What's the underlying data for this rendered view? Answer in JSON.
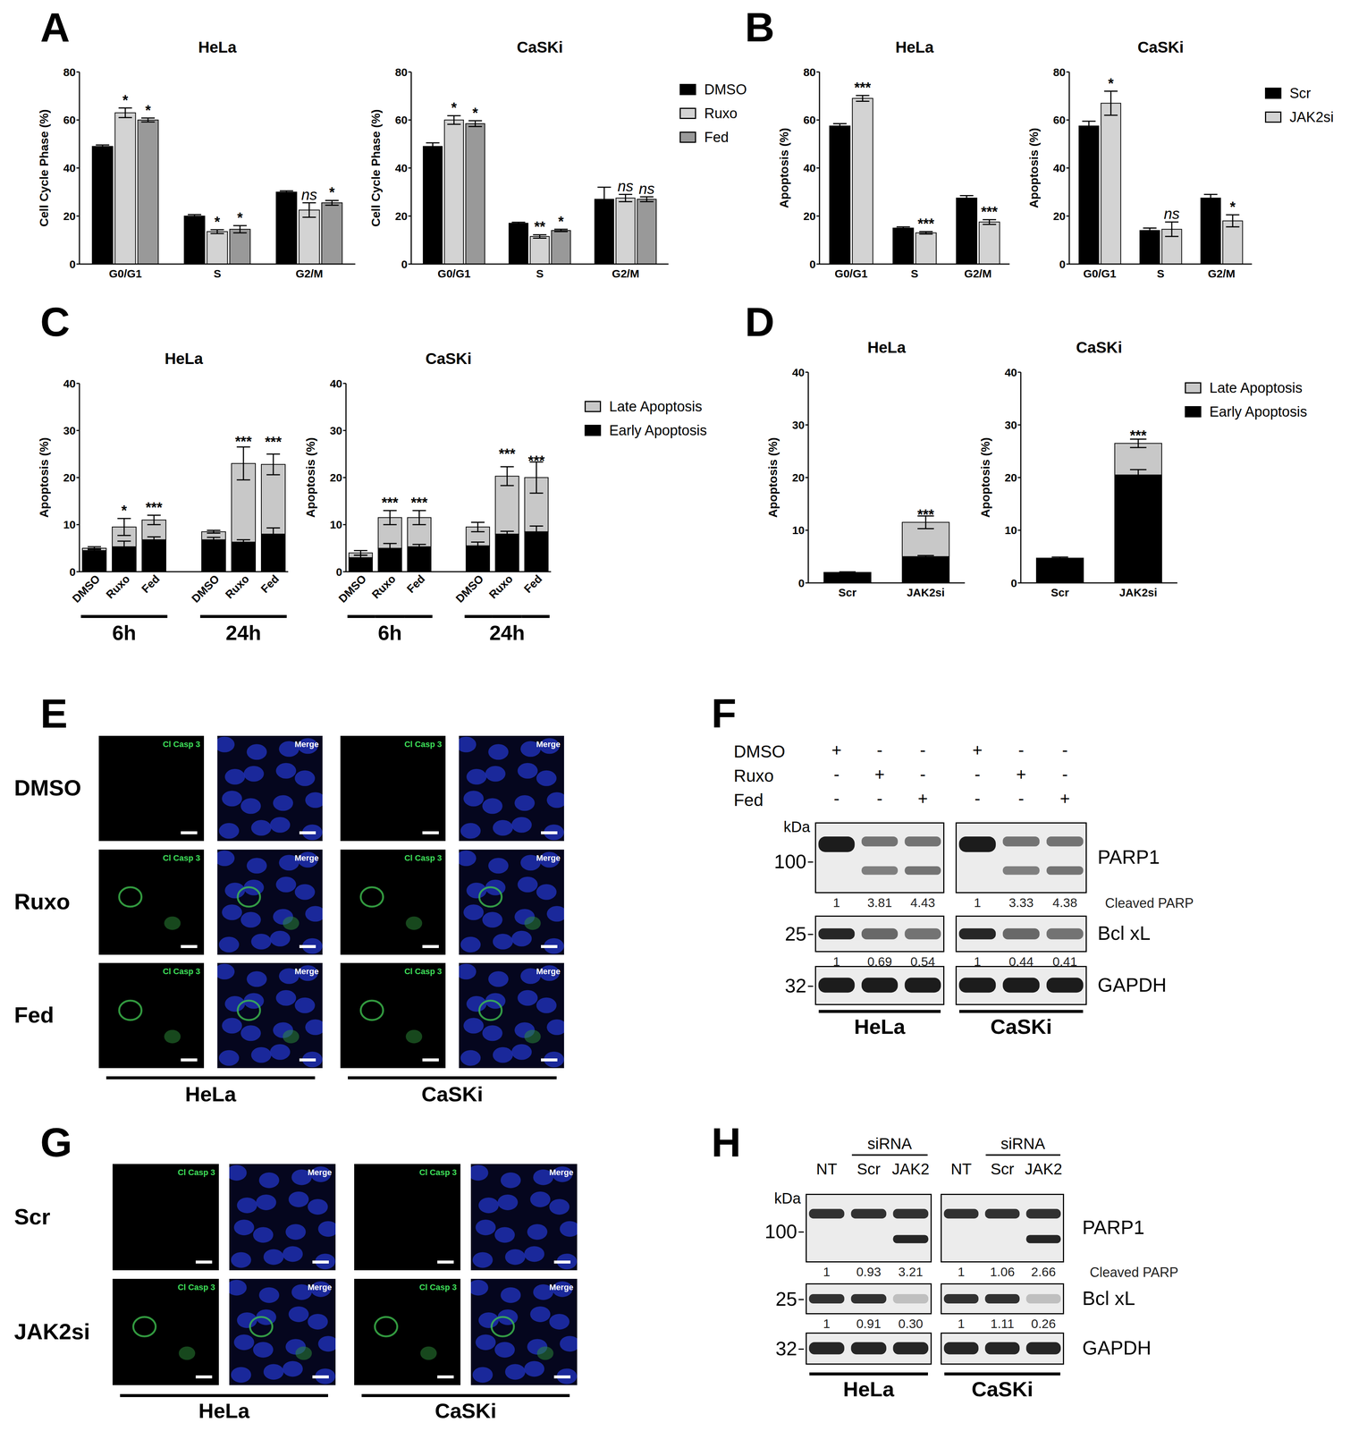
{
  "chart_data": [
    {
      "type": "bar",
      "title": "HeLa",
      "y_label": "Cell Cycle Phase (%)",
      "categories": [
        "G0/G1",
        "S",
        "G2/M"
      ],
      "series": [
        {
          "name": "DMSO",
          "color": "#000000",
          "values": [
            49,
            20,
            30
          ],
          "errors": [
            0.6,
            0.6,
            0.5
          ]
        },
        {
          "name": "Ruxo",
          "color": "#d3d3d3",
          "values": [
            63,
            13.5,
            22.5
          ],
          "errors": [
            2,
            0.8,
            3
          ],
          "significance": [
            "*",
            "*",
            "ns"
          ]
        },
        {
          "name": "Fed",
          "color": "#999999",
          "values": [
            60,
            14.5,
            25.5
          ],
          "errors": [
            0.8,
            1.5,
            1
          ],
          "significance": [
            "*",
            "*",
            "*"
          ]
        }
      ],
      "ylim": [
        0,
        80
      ],
      "yticks": [
        0,
        20,
        40,
        60,
        80
      ]
    },
    {
      "type": "bar",
      "title": "CaSKi",
      "y_label": "Cell Cycle Phase (%)",
      "categories": [
        "G0/G1",
        "S",
        "G2/M"
      ],
      "series": [
        {
          "name": "DMSO",
          "color": "#000000",
          "values": [
            49,
            17,
            27
          ],
          "errors": [
            1.5,
            0.4,
            5
          ]
        },
        {
          "name": "Ruxo",
          "color": "#d3d3d3",
          "values": [
            60,
            11.5,
            27.5
          ],
          "errors": [
            1.8,
            0.7,
            1.5
          ],
          "significance": [
            "*",
            "**",
            "ns"
          ]
        },
        {
          "name": "Fed",
          "color": "#999999",
          "values": [
            58.5,
            14,
            27
          ],
          "errors": [
            1.2,
            0.5,
            1
          ],
          "significance": [
            "*",
            "*",
            "ns"
          ]
        }
      ],
      "ylim": [
        0,
        80
      ],
      "yticks": [
        0,
        20,
        40,
        60,
        80
      ],
      "legend": "right"
    },
    {
      "type": "bar",
      "title": "HeLa",
      "y_label": "Apoptosis (%)",
      "categories": [
        "G0/G1",
        "S",
        "G2/M"
      ],
      "series": [
        {
          "name": "Scr",
          "color": "#000000",
          "values": [
            57.5,
            15,
            27.5
          ],
          "errors": [
            1,
            0.5,
            1
          ]
        },
        {
          "name": "JAK2si",
          "color": "#d3d3d3",
          "values": [
            69,
            13,
            17.5
          ],
          "errors": [
            1.2,
            0.5,
            1
          ],
          "significance": [
            "***",
            "***",
            "***"
          ]
        }
      ],
      "ylim": [
        0,
        80
      ],
      "yticks": [
        0,
        20,
        40,
        60,
        80
      ]
    },
    {
      "type": "bar",
      "title": "CaSKi",
      "y_label": "Apoptosis (%)",
      "categories": [
        "G0/G1",
        "S",
        "G2/M"
      ],
      "series": [
        {
          "name": "Scr",
          "color": "#000000",
          "values": [
            57.5,
            14,
            27.5
          ],
          "errors": [
            2,
            1,
            1.5
          ]
        },
        {
          "name": "JAK2si",
          "color": "#d3d3d3",
          "values": [
            67,
            14.5,
            18
          ],
          "errors": [
            5,
            3,
            2.5
          ],
          "significance": [
            "*",
            "ns",
            "*"
          ]
        }
      ],
      "ylim": [
        0,
        80
      ],
      "yticks": [
        0,
        20,
        40,
        60,
        80
      ],
      "legend": "right"
    },
    {
      "type": "bar",
      "stacked": true,
      "title": "HeLa",
      "y_label": "Apoptosis (%)",
      "categories": [
        "DMSO",
        "Ruxo",
        "Fed",
        null,
        "DMSO",
        "Ruxo",
        "Fed"
      ],
      "group_labels": [
        "6h",
        "24h"
      ],
      "series": [
        {
          "name": "Early Apoptosis",
          "color": "#000000",
          "values": [
            4.5,
            5.3,
            6.8,
            null,
            6.8,
            6.3,
            8
          ],
          "errors": [
            0.4,
            1.2,
            0.6,
            null,
            0.5,
            0.5,
            1.3
          ]
        },
        {
          "name": "Late Apoptosis",
          "color": "#c8c8c8",
          "values": [
            0.5,
            4.2,
            4.2,
            null,
            1.7,
            16.7,
            14.8
          ],
          "errors": [
            0.3,
            1.8,
            1,
            null,
            0.3,
            3.5,
            2.2
          ],
          "significance": [
            null,
            "*",
            "***",
            null,
            null,
            "***",
            "***"
          ]
        }
      ],
      "ylim": [
        0,
        40
      ],
      "yticks": [
        0,
        10,
        20,
        30,
        40
      ]
    },
    {
      "type": "bar",
      "stacked": true,
      "title": "CaSKi",
      "y_label": "Apoptosis (%)",
      "categories": [
        "DMSO",
        "Ruxo",
        "Fed",
        null,
        "DMSO",
        "Ruxo",
        "Fed"
      ],
      "group_labels": [
        "6h",
        "24h"
      ],
      "series": [
        {
          "name": "Early Apoptosis",
          "color": "#000000",
          "values": [
            3,
            5,
            5.3,
            null,
            5.5,
            8,
            8.5
          ],
          "errors": [
            0.5,
            1,
            0.5,
            null,
            0.8,
            0.6,
            1.2
          ]
        },
        {
          "name": "Late Apoptosis",
          "color": "#c8c8c8",
          "values": [
            1,
            6.5,
            6.2,
            null,
            4,
            12.3,
            11.5
          ],
          "errors": [
            0.5,
            1.5,
            1.5,
            null,
            1,
            2,
            3.3
          ],
          "significance": [
            null,
            "***",
            "***",
            null,
            null,
            "***",
            "***"
          ]
        }
      ],
      "ylim": [
        0,
        40
      ],
      "yticks": [
        0,
        10,
        20,
        30,
        40
      ],
      "legend": "right"
    },
    {
      "type": "bar",
      "stacked": true,
      "title": "HeLa",
      "y_label": "Apoptosis (%)",
      "categories": [
        "Scr",
        "JAK2si"
      ],
      "series": [
        {
          "name": "Early Apoptosis",
          "color": "#000000",
          "values": [
            2,
            5
          ],
          "errors": [
            0.1,
            0.2
          ]
        },
        {
          "name": "Late Apoptosis",
          "color": "#c8c8c8",
          "values": [
            0,
            6.5
          ],
          "errors": [
            0,
            1.2
          ],
          "significance": [
            null,
            "***"
          ]
        }
      ],
      "ylim": [
        0,
        40
      ],
      "yticks": [
        0,
        10,
        20,
        30,
        40
      ]
    },
    {
      "type": "bar",
      "stacked": true,
      "title": "CaSKi",
      "y_label": "Apoptosis (%)",
      "categories": [
        "Scr",
        "JAK2si"
      ],
      "series": [
        {
          "name": "Early Apoptosis",
          "color": "#000000",
          "values": [
            4.7,
            20.5
          ],
          "errors": [
            0.2,
            1
          ]
        },
        {
          "name": "Late Apoptosis",
          "color": "#c8c8c8",
          "values": [
            0,
            6
          ],
          "errors": [
            0,
            0.8
          ],
          "significance": [
            null,
            "***"
          ]
        }
      ],
      "ylim": [
        0,
        40
      ],
      "yticks": [
        0,
        10,
        20,
        30,
        40
      ],
      "legend": "right"
    }
  ],
  "chart_panel_labels": [
    "A",
    "B",
    "C",
    "D"
  ],
  "images": [
    {
      "label": "E",
      "rows": [
        "DMSO",
        "Ruxo",
        "Fed"
      ],
      "channels": [
        "Cl Casp 3",
        "Merge"
      ],
      "cell_lines": [
        "HeLa",
        "CaSKi"
      ]
    },
    {
      "label": "G",
      "rows": [
        "Scr",
        "JAK2si"
      ],
      "channels": [
        "Cl Casp 3",
        "Merge"
      ],
      "cell_lines": [
        "HeLa",
        "CaSKi"
      ]
    }
  ],
  "blots": [
    {
      "label": "F",
      "treatments": [
        {
          "name": "DMSO",
          "marks": [
            "+",
            "-",
            "-",
            "+",
            "-",
            "-"
          ]
        },
        {
          "name": "Ruxo",
          "marks": [
            "-",
            "+",
            "-",
            "-",
            "+",
            "-"
          ]
        },
        {
          "name": "Fed",
          "marks": [
            "-",
            "-",
            "+",
            "-",
            "-",
            "+"
          ]
        }
      ],
      "size_unit": "kDa",
      "cell_lines": [
        "HeLa",
        "CaSKi"
      ],
      "rows": [
        {
          "protein": "PARP1",
          "size": 100,
          "quant_label": "Cleaved PARP",
          "quant": [
            [
              "1",
              "3.81",
              "4.43"
            ],
            [
              "1",
              "3.33",
              "4.38"
            ]
          ]
        },
        {
          "protein": "Bcl xL",
          "size": 25,
          "quant": [
            [
              "1",
              "0.69",
              "0.54"
            ],
            [
              "1",
              "0.44",
              "0.41"
            ]
          ]
        },
        {
          "protein": "GAPDH",
          "size": 32
        }
      ]
    },
    {
      "label": "H",
      "group_label": "siRNA",
      "lanes": [
        "NT",
        "Scr",
        "JAK2"
      ],
      "size_unit": "kDa",
      "cell_lines": [
        "HeLa",
        "CaSKi"
      ],
      "rows": [
        {
          "protein": "PARP1",
          "size": 100,
          "quant_label": "Cleaved PARP",
          "quant": [
            [
              "1",
              "0.93",
              "3.21"
            ],
            [
              "1",
              "1.06",
              "2.66"
            ]
          ]
        },
        {
          "protein": "Bcl xL",
          "size": 25,
          "quant": [
            [
              "1",
              "0.91",
              "0.30"
            ],
            [
              "1",
              "1.11",
              "0.26"
            ]
          ]
        },
        {
          "protein": "GAPDH",
          "size": 32
        }
      ]
    }
  ]
}
